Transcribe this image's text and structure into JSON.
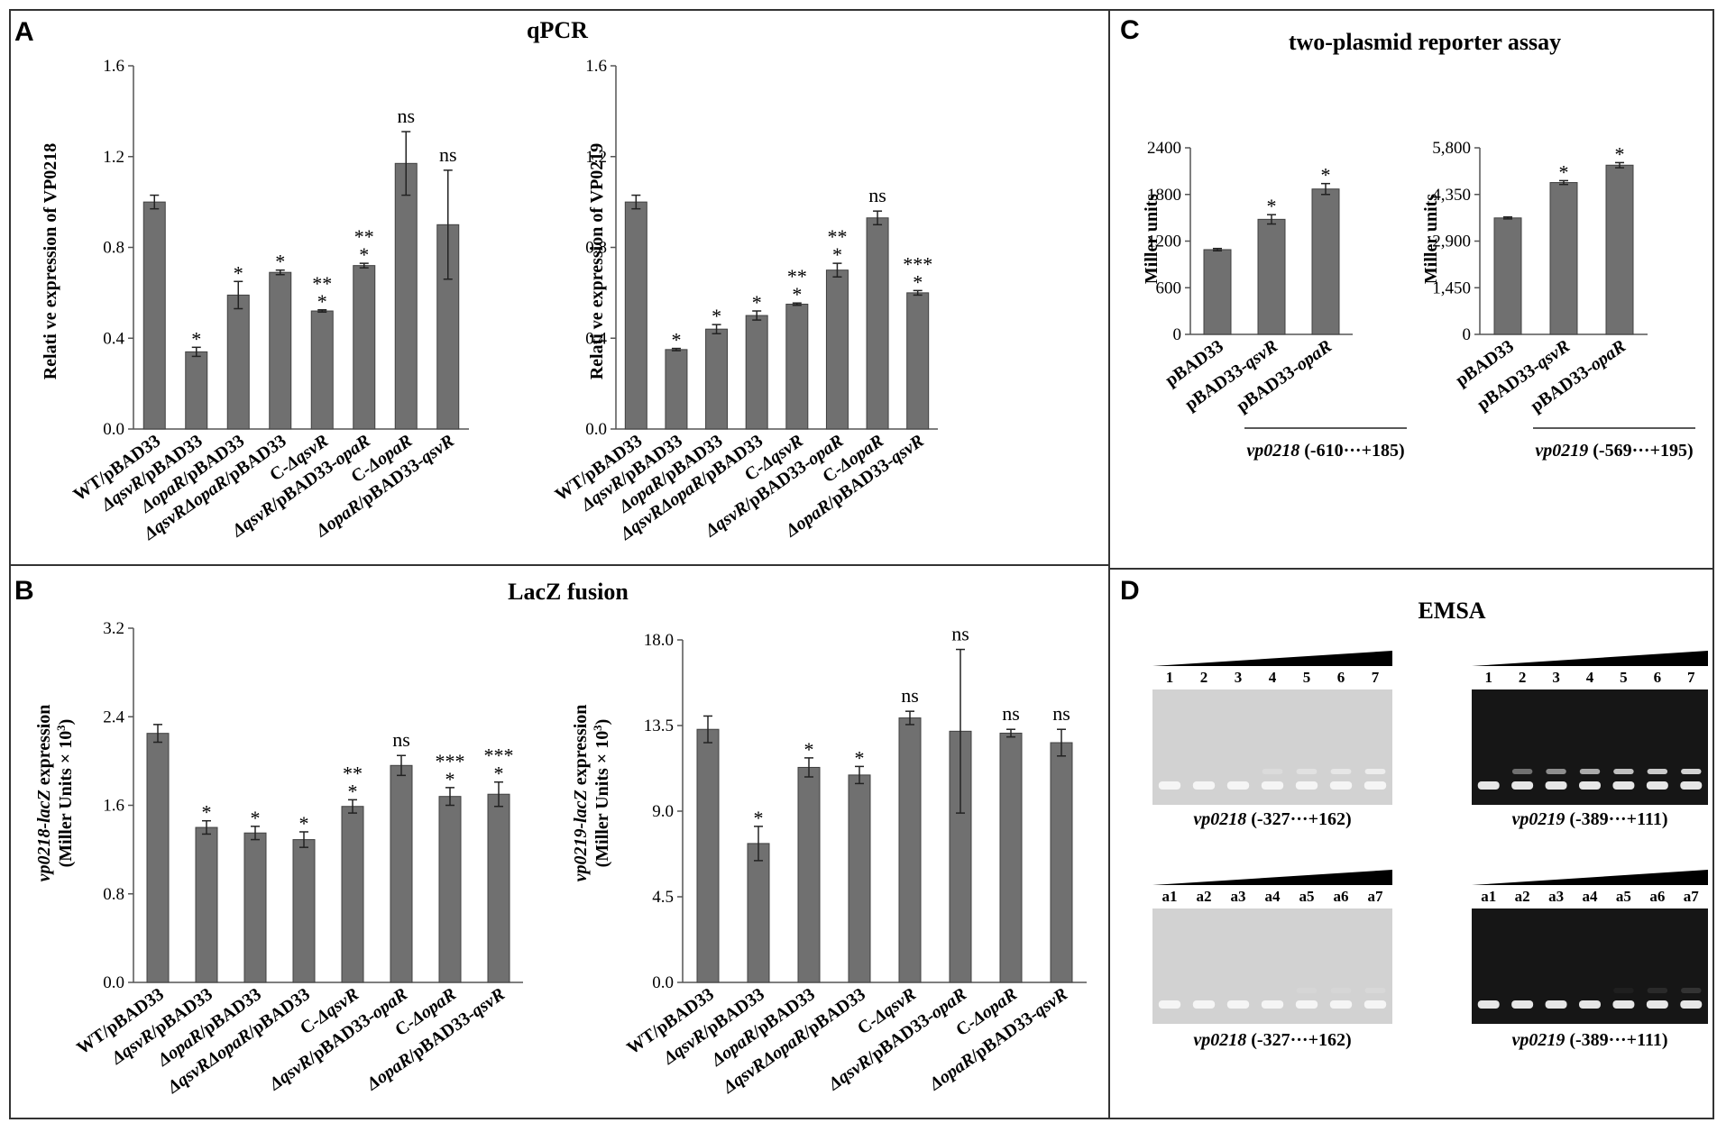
{
  "panels": {
    "A": {
      "letter": "A",
      "title": "qPCR"
    },
    "B": {
      "letter": "B",
      "title": "LacZ fusion"
    },
    "C": {
      "letter": "C",
      "title": "two-plasmid reporter assay"
    },
    "D": {
      "letter": "D",
      "title": "EMSA"
    }
  },
  "colors": {
    "bar": "#707070",
    "bar_stroke": "#404040",
    "border": "#333333",
    "gel_light": "#d2d2d2",
    "gel_dark": "#161616"
  },
  "chart_data": [
    {
      "id": "A1",
      "type": "bar",
      "panel": "A",
      "ylabel": "Relati ve expression of VP0218",
      "ylim": [
        0,
        1.6
      ],
      "yticks": [
        "0.0",
        "0.4",
        "0.8",
        "1.2",
        "1.6"
      ],
      "categories": [
        [
          {
            "t": "WT/pBAD33"
          }
        ],
        [
          {
            "t": "ΔqsvR",
            "i": true
          },
          {
            "t": "/pBAD33"
          }
        ],
        [
          {
            "t": "ΔopaR",
            "i": true
          },
          {
            "t": "/pBAD33"
          }
        ],
        [
          {
            "t": "ΔqsvRΔopaR",
            "i": true
          },
          {
            "t": "/pBAD33"
          }
        ],
        [
          {
            "t": "C-"
          },
          {
            "t": "ΔqsvR",
            "i": true
          }
        ],
        [
          {
            "t": "ΔqsvR",
            "i": true
          },
          {
            "t": "/pBAD33-"
          },
          {
            "t": "opaR",
            "i": true
          }
        ],
        [
          {
            "t": "C-"
          },
          {
            "t": "ΔopaR",
            "i": true
          }
        ],
        [
          {
            "t": "ΔopaR",
            "i": true
          },
          {
            "t": "/pBAD33-"
          },
          {
            "t": "qsvR",
            "i": true
          }
        ]
      ],
      "values": [
        1.0,
        0.34,
        0.59,
        0.69,
        0.52,
        0.72,
        1.17,
        0.9
      ],
      "errors": [
        0.03,
        0.02,
        0.06,
        0.01,
        0.005,
        0.01,
        0.14,
        0.24
      ],
      "labels": [
        [],
        [
          "*"
        ],
        [
          "*"
        ],
        [
          "*"
        ],
        [
          "**",
          "*"
        ],
        [
          "**",
          "*"
        ],
        [
          "ns"
        ],
        [
          "ns"
        ]
      ]
    },
    {
      "id": "A2",
      "type": "bar",
      "panel": "A",
      "ylabel": "Relati ve expression of VP0219",
      "ylim": [
        0,
        1.6
      ],
      "yticks": [
        "0.0",
        "0.4",
        "0.8",
        "1.2",
        "1.6"
      ],
      "categories": [
        [
          {
            "t": "WT/pBAD33"
          }
        ],
        [
          {
            "t": "ΔqsvR",
            "i": true
          },
          {
            "t": "/pBAD33"
          }
        ],
        [
          {
            "t": "ΔopaR",
            "i": true
          },
          {
            "t": "/pBAD33"
          }
        ],
        [
          {
            "t": "ΔqsvRΔopaR",
            "i": true
          },
          {
            "t": "/pBAD33"
          }
        ],
        [
          {
            "t": "C-"
          },
          {
            "t": "ΔqsvR",
            "i": true
          }
        ],
        [
          {
            "t": "ΔqsvR",
            "i": true
          },
          {
            "t": "/pBAD33-"
          },
          {
            "t": "opaR",
            "i": true
          }
        ],
        [
          {
            "t": "C-"
          },
          {
            "t": "ΔopaR",
            "i": true
          }
        ],
        [
          {
            "t": "ΔopaR",
            "i": true
          },
          {
            "t": "/pBAD33-"
          },
          {
            "t": "qsvR",
            "i": true
          }
        ]
      ],
      "values": [
        1.0,
        0.35,
        0.44,
        0.5,
        0.55,
        0.7,
        0.93,
        0.6
      ],
      "errors": [
        0.03,
        0.005,
        0.02,
        0.02,
        0.005,
        0.03,
        0.03,
        0.01
      ],
      "labels": [
        [],
        [
          "*"
        ],
        [
          "*"
        ],
        [
          "*"
        ],
        [
          "**",
          "*"
        ],
        [
          "**",
          "*"
        ],
        [
          "ns"
        ],
        [
          "***",
          "*"
        ]
      ]
    },
    {
      "id": "B1",
      "type": "bar",
      "panel": "B",
      "ylabel": [
        [
          {
            "t": "vp0218-lacZ",
            "i": true
          },
          {
            "t": " expression"
          }
        ],
        [
          {
            "t": "(Miller Units × 10"
          },
          {
            "t": "3",
            "sup": true
          },
          {
            "t": ")"
          }
        ]
      ],
      "ylim": [
        0,
        3.2
      ],
      "yticks": [
        "0.0",
        "0.8",
        "1.6",
        "2.4",
        "3.2"
      ],
      "categories": [
        [
          {
            "t": "WT/pBAD33"
          }
        ],
        [
          {
            "t": "ΔqsvR",
            "i": true
          },
          {
            "t": "/pBAD33"
          }
        ],
        [
          {
            "t": "ΔopaR",
            "i": true
          },
          {
            "t": "/pBAD33"
          }
        ],
        [
          {
            "t": "ΔqsvRΔopaR",
            "i": true
          },
          {
            "t": "/pBAD33"
          }
        ],
        [
          {
            "t": "C-"
          },
          {
            "t": "ΔqsvR",
            "i": true
          }
        ],
        [
          {
            "t": "ΔqsvR",
            "i": true
          },
          {
            "t": "/pBAD33-"
          },
          {
            "t": "opaR",
            "i": true
          }
        ],
        [
          {
            "t": "C-"
          },
          {
            "t": "ΔopaR",
            "i": true
          }
        ],
        [
          {
            "t": "ΔopaR",
            "i": true
          },
          {
            "t": "/pBAD33-"
          },
          {
            "t": "qsvR",
            "i": true
          }
        ]
      ],
      "values": [
        2.25,
        1.4,
        1.35,
        1.29,
        1.59,
        1.96,
        1.68,
        1.7
      ],
      "errors": [
        0.08,
        0.06,
        0.06,
        0.07,
        0.06,
        0.09,
        0.08,
        0.11
      ],
      "labels": [
        [],
        [
          "*"
        ],
        [
          "*"
        ],
        [
          "*"
        ],
        [
          "**",
          "*"
        ],
        [
          "ns"
        ],
        [
          "***",
          "*"
        ],
        [
          "***",
          "*"
        ]
      ]
    },
    {
      "id": "B2",
      "type": "bar",
      "panel": "B",
      "ylabel": [
        [
          {
            "t": "vp0219-lacZ",
            "i": true
          },
          {
            "t": " expression"
          }
        ],
        [
          {
            "t": "(Miller Units × 10"
          },
          {
            "t": "3",
            "sup": true
          },
          {
            "t": ")"
          }
        ]
      ],
      "ylim": [
        0,
        18
      ],
      "yticks": [
        "0.0",
        "4.5",
        "9.0",
        "13.5",
        "18.0"
      ],
      "categories": [
        [
          {
            "t": "WT/pBAD33"
          }
        ],
        [
          {
            "t": "ΔqsvR",
            "i": true
          },
          {
            "t": "/pBAD33"
          }
        ],
        [
          {
            "t": "ΔopaR",
            "i": true
          },
          {
            "t": "/pBAD33"
          }
        ],
        [
          {
            "t": "ΔqsvRΔopaR",
            "i": true
          },
          {
            "t": "/pBAD33"
          }
        ],
        [
          {
            "t": "C-"
          },
          {
            "t": "ΔqsvR",
            "i": true
          }
        ],
        [
          {
            "t": "ΔqsvR",
            "i": true
          },
          {
            "t": "/pBAD33-"
          },
          {
            "t": "opaR",
            "i": true
          }
        ],
        [
          {
            "t": "C-"
          },
          {
            "t": "ΔopaR",
            "i": true
          }
        ],
        [
          {
            "t": "ΔopaR",
            "i": true
          },
          {
            "t": "/pBAD33-"
          },
          {
            "t": "qsvR",
            "i": true
          }
        ]
      ],
      "values": [
        13.3,
        7.3,
        11.3,
        10.9,
        13.9,
        13.2,
        13.1,
        12.6
      ],
      "errors": [
        0.7,
        0.9,
        0.5,
        0.45,
        0.35,
        4.3,
        0.2,
        0.7
      ],
      "labels": [
        [],
        [
          "*"
        ],
        [
          "*"
        ],
        [
          "*"
        ],
        [
          "ns"
        ],
        [
          "ns"
        ],
        [
          "ns"
        ],
        [
          "ns"
        ]
      ]
    },
    {
      "id": "C1",
      "type": "bar",
      "panel": "C",
      "ylabel": "Miller units",
      "ylim": [
        0,
        2400
      ],
      "yticks": [
        "0",
        "600",
        "1200",
        "1800",
        "2400"
      ],
      "categories": [
        [
          {
            "t": "pBAD33"
          }
        ],
        [
          {
            "t": "pBAD33-"
          },
          {
            "t": "qsvR",
            "i": true
          }
        ],
        [
          {
            "t": "pBAD33-"
          },
          {
            "t": "opaR",
            "i": true
          }
        ]
      ],
      "values": [
        1090,
        1480,
        1870
      ],
      "errors": [
        15,
        60,
        70
      ],
      "labels": [
        [],
        [
          "*"
        ],
        [
          "*"
        ]
      ],
      "region": [
        {
          "t": "vp0218",
          "i": true
        },
        {
          "t": " (-610···+185)"
        }
      ]
    },
    {
      "id": "C2",
      "type": "bar",
      "panel": "C",
      "ylabel": "Miller units",
      "ylim": [
        0,
        5800
      ],
      "yticks": [
        "0",
        "1,450",
        "2,900",
        "4,350",
        "5,800"
      ],
      "categories": [
        [
          {
            "t": "pBAD33"
          }
        ],
        [
          {
            "t": "pBAD33-"
          },
          {
            "t": "qsvR",
            "i": true
          }
        ],
        [
          {
            "t": "pBAD33-"
          },
          {
            "t": "opaR",
            "i": true
          }
        ]
      ],
      "values": [
        3620,
        4720,
        5260
      ],
      "errors": [
        30,
        60,
        80
      ],
      "labels": [
        [],
        [
          "*"
        ],
        [
          "*"
        ]
      ],
      "region": [
        {
          "t": "vp0219",
          "i": true
        },
        {
          "t": " (-569···+195)"
        }
      ]
    }
  ],
  "emsa": {
    "gels": [
      {
        "lanes": [
          "1",
          "2",
          "3",
          "4",
          "5",
          "6",
          "7"
        ],
        "style": "light",
        "shift": [
          0,
          0,
          0,
          0.2,
          0.35,
          0.45,
          0.6
        ],
        "caption": [
          {
            "t": "vp0218",
            "i": true
          },
          {
            "t": " (-327···+162)"
          }
        ]
      },
      {
        "lanes": [
          "1",
          "2",
          "3",
          "4",
          "5",
          "6",
          "7"
        ],
        "style": "dark",
        "shift": [
          0,
          0.45,
          0.6,
          0.75,
          0.85,
          0.9,
          0.95
        ],
        "caption": [
          {
            "t": "vp0219",
            "i": true
          },
          {
            "t": " (-389···+111)"
          }
        ]
      },
      {
        "lanes": [
          "a1",
          "a2",
          "a3",
          "a4",
          "a5",
          "a6",
          "a7"
        ],
        "style": "light",
        "shift": [
          0,
          0,
          0,
          0,
          0.1,
          0.1,
          0.15
        ],
        "caption": [
          {
            "t": "vp0218",
            "i": true
          },
          {
            "t": " (-327···+162)"
          }
        ]
      },
      {
        "lanes": [
          "a1",
          "a2",
          "a3",
          "a4",
          "a5",
          "a6",
          "a7"
        ],
        "style": "dark",
        "shift": [
          0,
          0,
          0,
          0,
          0.05,
          0.1,
          0.15
        ],
        "caption": [
          {
            "t": "vp0219",
            "i": true
          },
          {
            "t": " (-389···+111)"
          }
        ]
      }
    ]
  }
}
